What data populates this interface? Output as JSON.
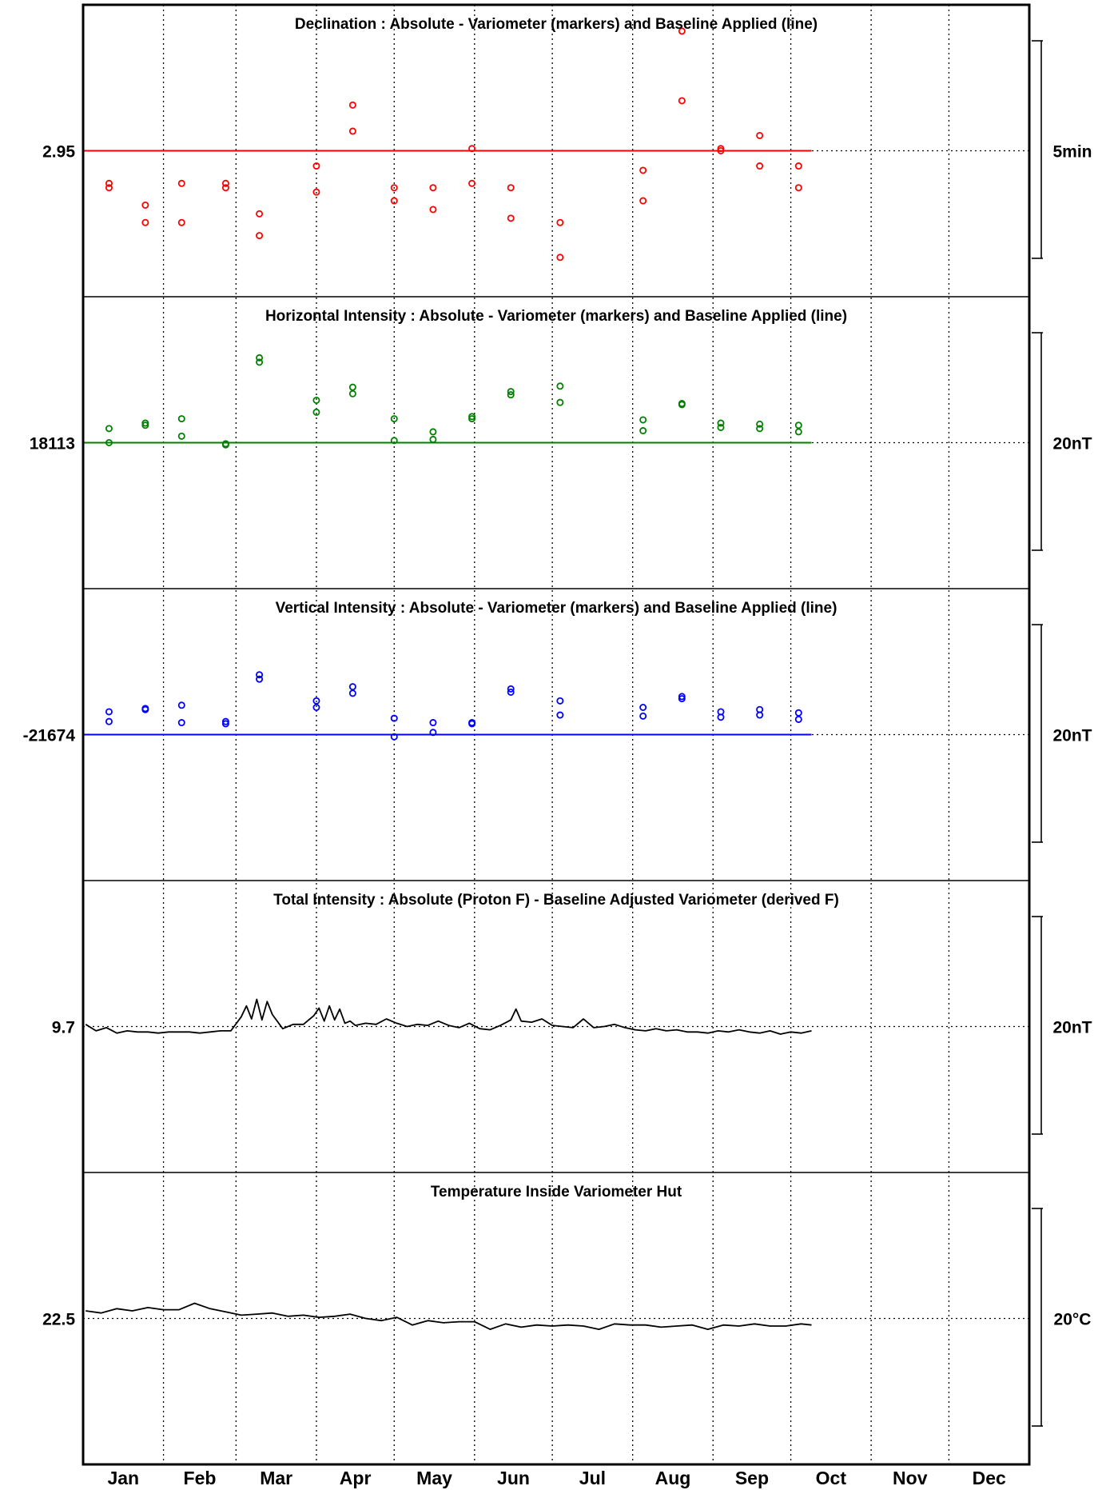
{
  "chart_data": [
    {
      "type": "scatter",
      "title": "Declination : Absolute - Variometer (markers) and Baseline Applied (line)",
      "baseline_label": "2.95",
      "scale_label": "5min",
      "color": "#ff0000",
      "baseline": 2.95,
      "units_per_bar": 5,
      "x_units": "day of year",
      "points": [
        {
          "x": 10,
          "y": 2.2
        },
        {
          "x": 10,
          "y": 2.1
        },
        {
          "x": 24,
          "y": 1.7
        },
        {
          "x": 24,
          "y": 1.3
        },
        {
          "x": 38,
          "y": 2.2
        },
        {
          "x": 38,
          "y": 1.3
        },
        {
          "x": 55,
          "y": 2.2
        },
        {
          "x": 55,
          "y": 2.1
        },
        {
          "x": 68,
          "y": 1.5
        },
        {
          "x": 68,
          "y": 1.0
        },
        {
          "x": 90,
          "y": 2.6
        },
        {
          "x": 90,
          "y": 2.0
        },
        {
          "x": 104,
          "y": 3.4
        },
        {
          "x": 104,
          "y": 4.0
        },
        {
          "x": 120,
          "y": 2.1
        },
        {
          "x": 120,
          "y": 1.8
        },
        {
          "x": 135,
          "y": 2.1
        },
        {
          "x": 135,
          "y": 1.6
        },
        {
          "x": 150,
          "y": 3.0
        },
        {
          "x": 150,
          "y": 2.2
        },
        {
          "x": 165,
          "y": 2.1
        },
        {
          "x": 165,
          "y": 1.4
        },
        {
          "x": 184,
          "y": 1.3
        },
        {
          "x": 184,
          "y": 0.5
        },
        {
          "x": 216,
          "y": 2.5
        },
        {
          "x": 216,
          "y": 1.8
        },
        {
          "x": 231,
          "y": 5.7
        },
        {
          "x": 231,
          "y": 4.1
        },
        {
          "x": 246,
          "y": 3.0
        },
        {
          "x": 246,
          "y": 2.95
        },
        {
          "x": 261,
          "y": 3.3
        },
        {
          "x": 261,
          "y": 2.6
        },
        {
          "x": 276,
          "y": 2.6
        },
        {
          "x": 276,
          "y": 2.1
        }
      ]
    },
    {
      "type": "scatter",
      "title": "Horizontal Intensity : Absolute - Variometer (markers) and Baseline Applied (line)",
      "baseline_label": "18113",
      "scale_label": "20nT",
      "color": "#008000",
      "baseline": 18113,
      "units_per_bar": 20,
      "x_units": "day of year",
      "points": [
        {
          "x": 10,
          "y": 18114.3
        },
        {
          "x": 10,
          "y": 18113.0
        },
        {
          "x": 24,
          "y": 18114.8
        },
        {
          "x": 24,
          "y": 18114.6
        },
        {
          "x": 38,
          "y": 18115.2
        },
        {
          "x": 38,
          "y": 18113.6
        },
        {
          "x": 55,
          "y": 18112.9
        },
        {
          "x": 55,
          "y": 18112.8
        },
        {
          "x": 68,
          "y": 18120.8
        },
        {
          "x": 68,
          "y": 18120.4
        },
        {
          "x": 90,
          "y": 18116.9
        },
        {
          "x": 90,
          "y": 18115.8
        },
        {
          "x": 104,
          "y": 18118.1
        },
        {
          "x": 104,
          "y": 18117.5
        },
        {
          "x": 120,
          "y": 18115.2
        },
        {
          "x": 120,
          "y": 18113.2
        },
        {
          "x": 135,
          "y": 18114.0
        },
        {
          "x": 135,
          "y": 18113.3
        },
        {
          "x": 150,
          "y": 18115.4
        },
        {
          "x": 150,
          "y": 18115.2
        },
        {
          "x": 165,
          "y": 18117.7
        },
        {
          "x": 165,
          "y": 18117.4
        },
        {
          "x": 184,
          "y": 18118.2
        },
        {
          "x": 184,
          "y": 18116.7
        },
        {
          "x": 216,
          "y": 18115.1
        },
        {
          "x": 216,
          "y": 18114.1
        },
        {
          "x": 231,
          "y": 18116.6
        },
        {
          "x": 231,
          "y": 18116.5
        },
        {
          "x": 246,
          "y": 18114.8
        },
        {
          "x": 246,
          "y": 18114.4
        },
        {
          "x": 261,
          "y": 18114.7
        },
        {
          "x": 261,
          "y": 18114.3
        },
        {
          "x": 276,
          "y": 18114.6
        },
        {
          "x": 276,
          "y": 18114.0
        }
      ]
    },
    {
      "type": "scatter",
      "title": "Vertical Intensity : Absolute - Variometer (markers) and Baseline Applied (line)",
      "baseline_label": "-21674",
      "scale_label": "20nT",
      "color": "#0000ff",
      "baseline": -21674,
      "units_per_bar": 20,
      "x_units": "day of year",
      "points": [
        {
          "x": 10,
          "y": -21671.9
        },
        {
          "x": 10,
          "y": -21672.8
        },
        {
          "x": 24,
          "y": -21671.7
        },
        {
          "x": 24,
          "y": -21671.6
        },
        {
          "x": 38,
          "y": -21671.3
        },
        {
          "x": 38,
          "y": -21672.9
        },
        {
          "x": 55,
          "y": -21673.0
        },
        {
          "x": 55,
          "y": -21672.8
        },
        {
          "x": 68,
          "y": -21668.9
        },
        {
          "x": 68,
          "y": -21668.5
        },
        {
          "x": 90,
          "y": -21671.5
        },
        {
          "x": 90,
          "y": -21670.9
        },
        {
          "x": 104,
          "y": -21670.2
        },
        {
          "x": 104,
          "y": -21669.6
        },
        {
          "x": 120,
          "y": -21672.5
        },
        {
          "x": 120,
          "y": -21674.2
        },
        {
          "x": 135,
          "y": -21672.9
        },
        {
          "x": 135,
          "y": -21673.8
        },
        {
          "x": 150,
          "y": -21673.0
        },
        {
          "x": 150,
          "y": -21672.9
        },
        {
          "x": 165,
          "y": -21670.1
        },
        {
          "x": 165,
          "y": -21669.8
        },
        {
          "x": 184,
          "y": -21672.2
        },
        {
          "x": 184,
          "y": -21670.9
        },
        {
          "x": 216,
          "y": -21672.3
        },
        {
          "x": 216,
          "y": -21671.5
        },
        {
          "x": 231,
          "y": -21670.7
        },
        {
          "x": 231,
          "y": -21670.5
        },
        {
          "x": 246,
          "y": -21672.4
        },
        {
          "x": 246,
          "y": -21671.9
        },
        {
          "x": 261,
          "y": -21672.2
        },
        {
          "x": 261,
          "y": -21671.7
        },
        {
          "x": 276,
          "y": -21672.6
        },
        {
          "x": 276,
          "y": -21672.0
        }
      ]
    },
    {
      "type": "line",
      "title": "Total Intensity : Absolute (Proton F) - Baseline Adjusted Variometer (derived F)",
      "baseline_label": "9.7",
      "scale_label": "20nT",
      "color": "#000000",
      "baseline": 9.7,
      "units_per_bar": 20,
      "x_units": "day of year",
      "x": [
        1,
        5,
        9,
        13,
        17,
        21,
        25,
        29,
        33,
        37,
        41,
        45,
        49,
        53,
        57,
        61,
        63,
        65,
        67,
        69,
        71,
        73,
        77,
        81,
        85,
        89,
        91,
        93,
        95,
        97,
        99,
        101,
        103,
        105,
        109,
        113,
        117,
        121,
        125,
        129,
        133,
        137,
        141,
        145,
        149,
        153,
        157,
        161,
        165,
        167,
        169,
        173,
        177,
        181,
        185,
        189,
        193,
        197,
        201,
        205,
        209,
        213,
        217,
        221,
        225,
        229,
        233,
        237,
        241,
        245,
        249,
        253,
        257,
        261,
        265,
        269,
        273,
        277,
        281
      ],
      "values": [
        9.9,
        9.3,
        9.6,
        9.1,
        9.3,
        9.2,
        9.2,
        9.1,
        9.2,
        9.2,
        9.2,
        9.1,
        9.2,
        9.3,
        9.3,
        10.6,
        11.6,
        10.4,
        12.2,
        10.3,
        12.0,
        10.8,
        9.5,
        9.9,
        9.9,
        10.7,
        11.4,
        10.2,
        11.6,
        10.3,
        11.3,
        10.0,
        10.2,
        9.8,
        10.0,
        9.9,
        10.4,
        10.0,
        9.7,
        9.9,
        9.8,
        10.2,
        9.8,
        9.6,
        10.0,
        9.5,
        9.4,
        9.8,
        10.3,
        11.3,
        10.2,
        10.1,
        10.4,
        9.8,
        9.7,
        9.6,
        10.4,
        9.6,
        9.7,
        9.9,
        9.6,
        9.4,
        9.3,
        9.5,
        9.3,
        9.4,
        9.2,
        9.2,
        9.1,
        9.3,
        9.2,
        9.4,
        9.2,
        9.1,
        9.3,
        9.0,
        9.2,
        9.1,
        9.3
      ]
    },
    {
      "type": "line",
      "title": "Temperature Inside Variometer Hut",
      "baseline_label": "22.5",
      "scale_label": "20°C",
      "color": "#000000",
      "baseline": 22.5,
      "units_per_bar": 20,
      "x_units": "day of year",
      "x": [
        1,
        7,
        13,
        19,
        25,
        31,
        37,
        43,
        49,
        55,
        61,
        67,
        73,
        79,
        85,
        91,
        97,
        103,
        109,
        115,
        121,
        127,
        133,
        139,
        145,
        151,
        157,
        163,
        169,
        175,
        181,
        187,
        193,
        199,
        205,
        211,
        217,
        223,
        229,
        235,
        241,
        247,
        253,
        259,
        265,
        271,
        277,
        281
      ],
      "values": [
        23.2,
        23.0,
        23.4,
        23.2,
        23.5,
        23.3,
        23.3,
        23.9,
        23.4,
        23.1,
        22.8,
        22.9,
        23.0,
        22.7,
        22.8,
        22.6,
        22.7,
        22.9,
        22.5,
        22.3,
        22.6,
        21.9,
        22.3,
        22.1,
        22.2,
        22.2,
        21.5,
        22.0,
        21.7,
        21.9,
        21.8,
        21.9,
        21.8,
        21.5,
        22.0,
        21.9,
        21.9,
        21.7,
        21.8,
        21.9,
        21.5,
        21.9,
        21.8,
        22.0,
        21.8,
        21.8,
        22.0,
        21.9
      ]
    }
  ],
  "x_axis": {
    "months": [
      "Jan",
      "Feb",
      "Mar",
      "Apr",
      "May",
      "Jun",
      "Jul",
      "Aug",
      "Sep",
      "Oct",
      "Nov",
      "Dec"
    ],
    "range_days": [
      0,
      365
    ],
    "month_boundary_days": [
      31,
      59,
      90,
      120,
      151,
      181,
      212,
      243,
      273,
      304,
      334
    ]
  },
  "grid": true
}
